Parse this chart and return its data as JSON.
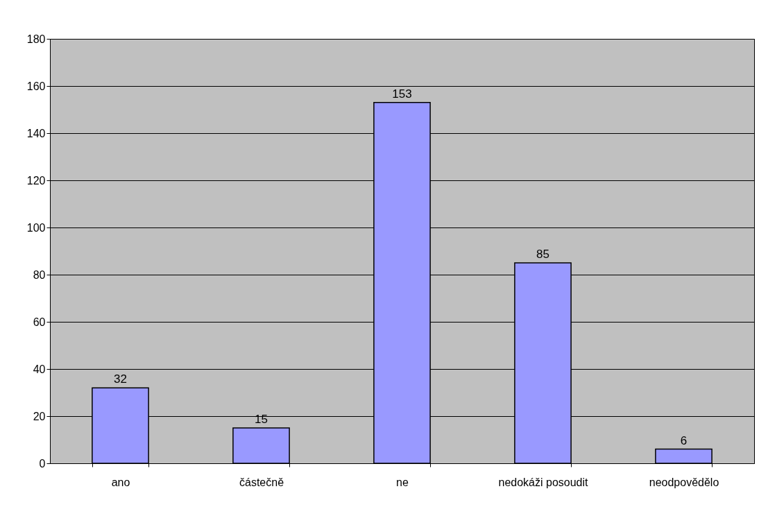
{
  "chart_data": {
    "type": "bar",
    "categories": [
      "ano",
      "částečně",
      "ne",
      "nedokáži posoudit",
      "neodpovědělo"
    ],
    "values": [
      32,
      15,
      153,
      85,
      6
    ],
    "color": "#9999ff",
    "ylim": [
      0,
      180
    ],
    "yticks": [
      0,
      20,
      40,
      60,
      80,
      100,
      120,
      140,
      160,
      180
    ],
    "grid": "y",
    "data_labels": true
  }
}
